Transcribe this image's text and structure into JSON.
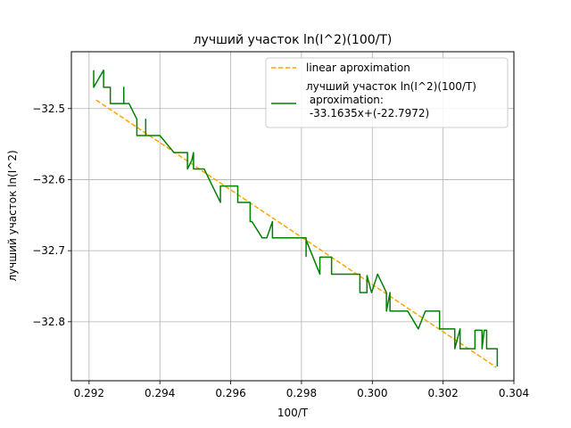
{
  "chart_data": {
    "type": "line",
    "title": "лучший участок ln(I^2)(100/T)",
    "xlabel": "100/T",
    "ylabel": "лучший участок ln(I^2)",
    "xlim": [
      0.2915,
      0.304
    ],
    "ylim": [
      -32.883,
      -32.42
    ],
    "grid": true,
    "legend_placement": "top-right",
    "x_ticks": [
      "0.292",
      "0.294",
      "0.296",
      "0.298",
      "0.300",
      "0.302",
      "0.304"
    ],
    "y_ticks": [
      "−32.5",
      "−32.6",
      "−32.7",
      "−32.8"
    ],
    "x_tick_values": [
      0.292,
      0.294,
      0.296,
      0.298,
      0.3,
      0.302,
      0.304
    ],
    "y_tick_values": [
      -32.5,
      -32.6,
      -32.7,
      -32.8
    ],
    "series": [
      {
        "name": "linear aproximation",
        "style": "dashed",
        "color": "#ffa500",
        "x": [
          0.2922,
          0.3035
        ],
        "y": [
          -32.488,
          -32.864
        ]
      },
      {
        "name": "лучший участок ln(I^2)(100/T)\n aproximation:\n -33.1635x+(-22.7972)",
        "style": "solid",
        "color": "#008000",
        "x": [
          0.29213,
          0.29213,
          0.29241,
          0.29241,
          0.2926,
          0.2926,
          0.29298,
          0.29298,
          0.29298,
          0.29298,
          0.29313,
          0.29335,
          0.29335,
          0.2936,
          0.2936,
          0.2936,
          0.29385,
          0.294,
          0.2944,
          0.2944,
          0.29478,
          0.29478,
          0.2949,
          0.29495,
          0.29495,
          0.29508,
          0.29508,
          0.29525,
          0.29571,
          0.29571,
          0.29577,
          0.2962,
          0.2962,
          0.2963,
          0.29655,
          0.29655,
          0.2966,
          0.29689,
          0.29702,
          0.29718,
          0.29718,
          0.29813,
          0.29813,
          0.29813,
          0.29852,
          0.29852,
          0.29885,
          0.29885,
          0.29965,
          0.29965,
          0.29985,
          0.29985,
          0.29998,
          0.30015,
          0.3004,
          0.3004,
          0.3005,
          0.3005,
          0.3006,
          0.301,
          0.3013,
          0.3013,
          0.3015,
          0.3017,
          0.3019,
          0.3019,
          0.30195,
          0.3022,
          0.30233,
          0.30233,
          0.30248,
          0.30248,
          0.3026,
          0.30273,
          0.3029,
          0.3029,
          0.3031,
          0.3031,
          0.30316,
          0.30323,
          0.30323,
          0.30353,
          0.30353
        ],
        "y": [
          -32.446,
          -32.47,
          -32.446,
          -32.47,
          -32.47,
          -32.493,
          -32.493,
          -32.47,
          -32.493,
          -32.493,
          -32.493,
          -32.515,
          -32.538,
          -32.538,
          -32.515,
          -32.538,
          -32.538,
          -32.538,
          -32.562,
          -32.562,
          -32.562,
          -32.585,
          -32.573,
          -32.562,
          -32.585,
          -32.585,
          -32.585,
          -32.585,
          -32.632,
          -32.609,
          -32.609,
          -32.609,
          -32.632,
          -32.632,
          -32.632,
          -32.659,
          -32.659,
          -32.682,
          -32.682,
          -32.659,
          -32.682,
          -32.682,
          -32.708,
          -32.685,
          -32.733,
          -32.709,
          -32.709,
          -32.733,
          -32.733,
          -32.759,
          -32.759,
          -32.735,
          -32.759,
          -32.733,
          -32.759,
          -32.785,
          -32.759,
          -32.785,
          -32.785,
          -32.785,
          -32.81,
          -32.81,
          -32.785,
          -32.785,
          -32.785,
          -32.81,
          -32.81,
          -32.81,
          -32.81,
          -32.838,
          -32.81,
          -32.838,
          -32.838,
          -32.838,
          -32.838,
          -32.812,
          -32.812,
          -32.838,
          -32.812,
          -32.812,
          -32.838,
          -32.838,
          -32.863
        ]
      }
    ]
  }
}
